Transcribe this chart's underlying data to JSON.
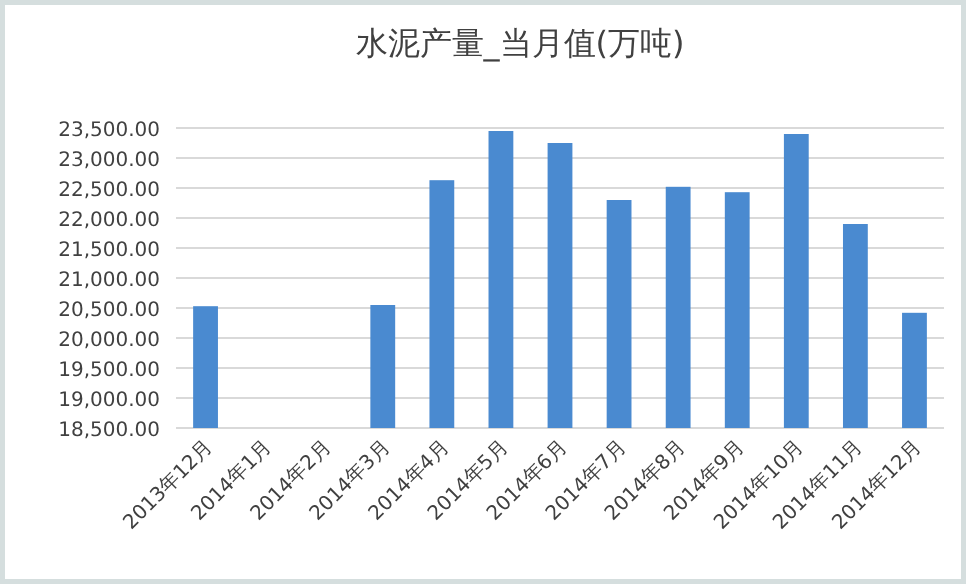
{
  "chart_data": {
    "type": "bar",
    "title": "水泥产量_当月值(万吨)",
    "categories": [
      "2013年12月",
      "2014年1月",
      "2014年2月",
      "2014年3月",
      "2014年4月",
      "2014年5月",
      "2014年6月",
      "2014年7月",
      "2014年8月",
      "2014年9月",
      "2014年10月",
      "2014年11月",
      "2014年12月"
    ],
    "values": [
      20530,
      null,
      null,
      20550,
      22630,
      23450,
      23250,
      22300,
      22520,
      22430,
      23400,
      21900,
      20420
    ],
    "color": "#4a8ad0",
    "ylim": [
      18500,
      23500
    ],
    "yticks": [
      {
        "value": 18500,
        "label": "18,500.00"
      },
      {
        "value": 19000,
        "label": "19,000.00"
      },
      {
        "value": 19500,
        "label": "19,500.00"
      },
      {
        "value": 20000,
        "label": "20,000.00"
      },
      {
        "value": 20500,
        "label": "20,500.00"
      },
      {
        "value": 21000,
        "label": "21,000.00"
      },
      {
        "value": 21500,
        "label": "21,500.00"
      },
      {
        "value": 22000,
        "label": "22,000.00"
      },
      {
        "value": 22500,
        "label": "22,500.00"
      },
      {
        "value": 23000,
        "label": "23,000.00"
      },
      {
        "value": 23500,
        "label": "23,500.00"
      }
    ],
    "grid": "y"
  }
}
